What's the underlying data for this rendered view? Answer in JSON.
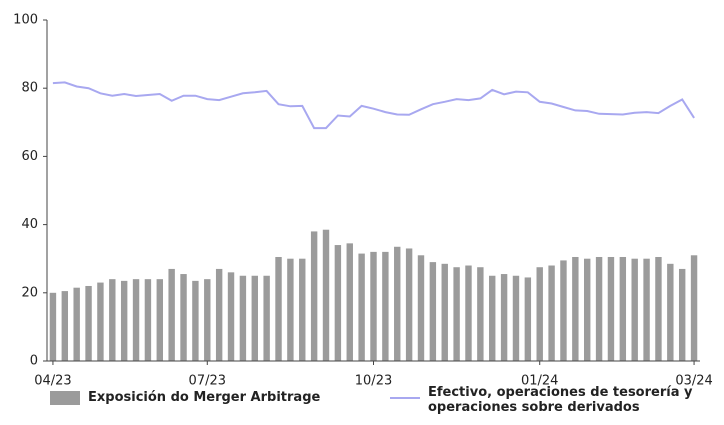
{
  "chart_data": {
    "type": "bar-line",
    "categories": [
      "04/23",
      null,
      null,
      null,
      null,
      null,
      null,
      null,
      null,
      null,
      null,
      null,
      null,
      "07/23",
      null,
      null,
      null,
      null,
      null,
      null,
      null,
      null,
      null,
      null,
      null,
      null,
      null,
      "10/23",
      null,
      null,
      null,
      null,
      null,
      null,
      null,
      null,
      null,
      null,
      null,
      null,
      null,
      "01/24",
      null,
      null,
      null,
      null,
      null,
      null,
      null,
      null,
      null,
      null,
      null,
      null,
      "03/24"
    ],
    "series": [
      {
        "name": "Exposición do Merger Arbitrage",
        "type": "bar",
        "color": "#9b9b9b",
        "values": [
          20,
          20.5,
          21.5,
          22,
          23,
          24,
          23.5,
          24,
          24,
          24,
          27,
          25.5,
          23.5,
          24,
          27,
          26,
          25,
          25,
          25,
          30.5,
          30,
          30,
          38,
          38.5,
          34,
          34.5,
          31.5,
          32,
          32,
          33.5,
          33,
          31,
          29,
          28.5,
          27.5,
          28,
          27.5,
          25,
          25.5,
          25,
          24.5,
          27.5,
          28,
          29.5,
          30.5,
          30,
          30.5,
          30.5,
          30.5,
          30,
          30,
          30.5,
          28.5,
          27,
          31
        ]
      },
      {
        "name": "Efectivo, operaciones de tesorería y operaciones sobre derivados",
        "type": "line",
        "color": "#a8a8f0",
        "values": [
          81.5,
          81.7,
          80.5,
          80,
          78.5,
          77.8,
          78.3,
          77.7,
          78,
          78.3,
          76.3,
          77.8,
          77.8,
          76.8,
          76.5,
          77.5,
          78.5,
          78.8,
          79.2,
          75.3,
          74.7,
          74.8,
          68.3,
          68.3,
          72,
          71.7,
          74.8,
          74,
          73,
          72.3,
          72.2,
          73.8,
          75.3,
          76,
          76.8,
          76.5,
          77,
          79.5,
          78.2,
          79,
          78.8,
          76,
          75.5,
          74.5,
          73.5,
          73.3,
          72.5,
          72.4,
          72.3,
          72.8,
          73,
          72.7,
          74.8,
          76.7,
          71.3
        ]
      }
    ],
    "ylim": [
      0,
      100
    ],
    "yticks": [
      0,
      20,
      40,
      60,
      80,
      100
    ],
    "grid": false
  }
}
